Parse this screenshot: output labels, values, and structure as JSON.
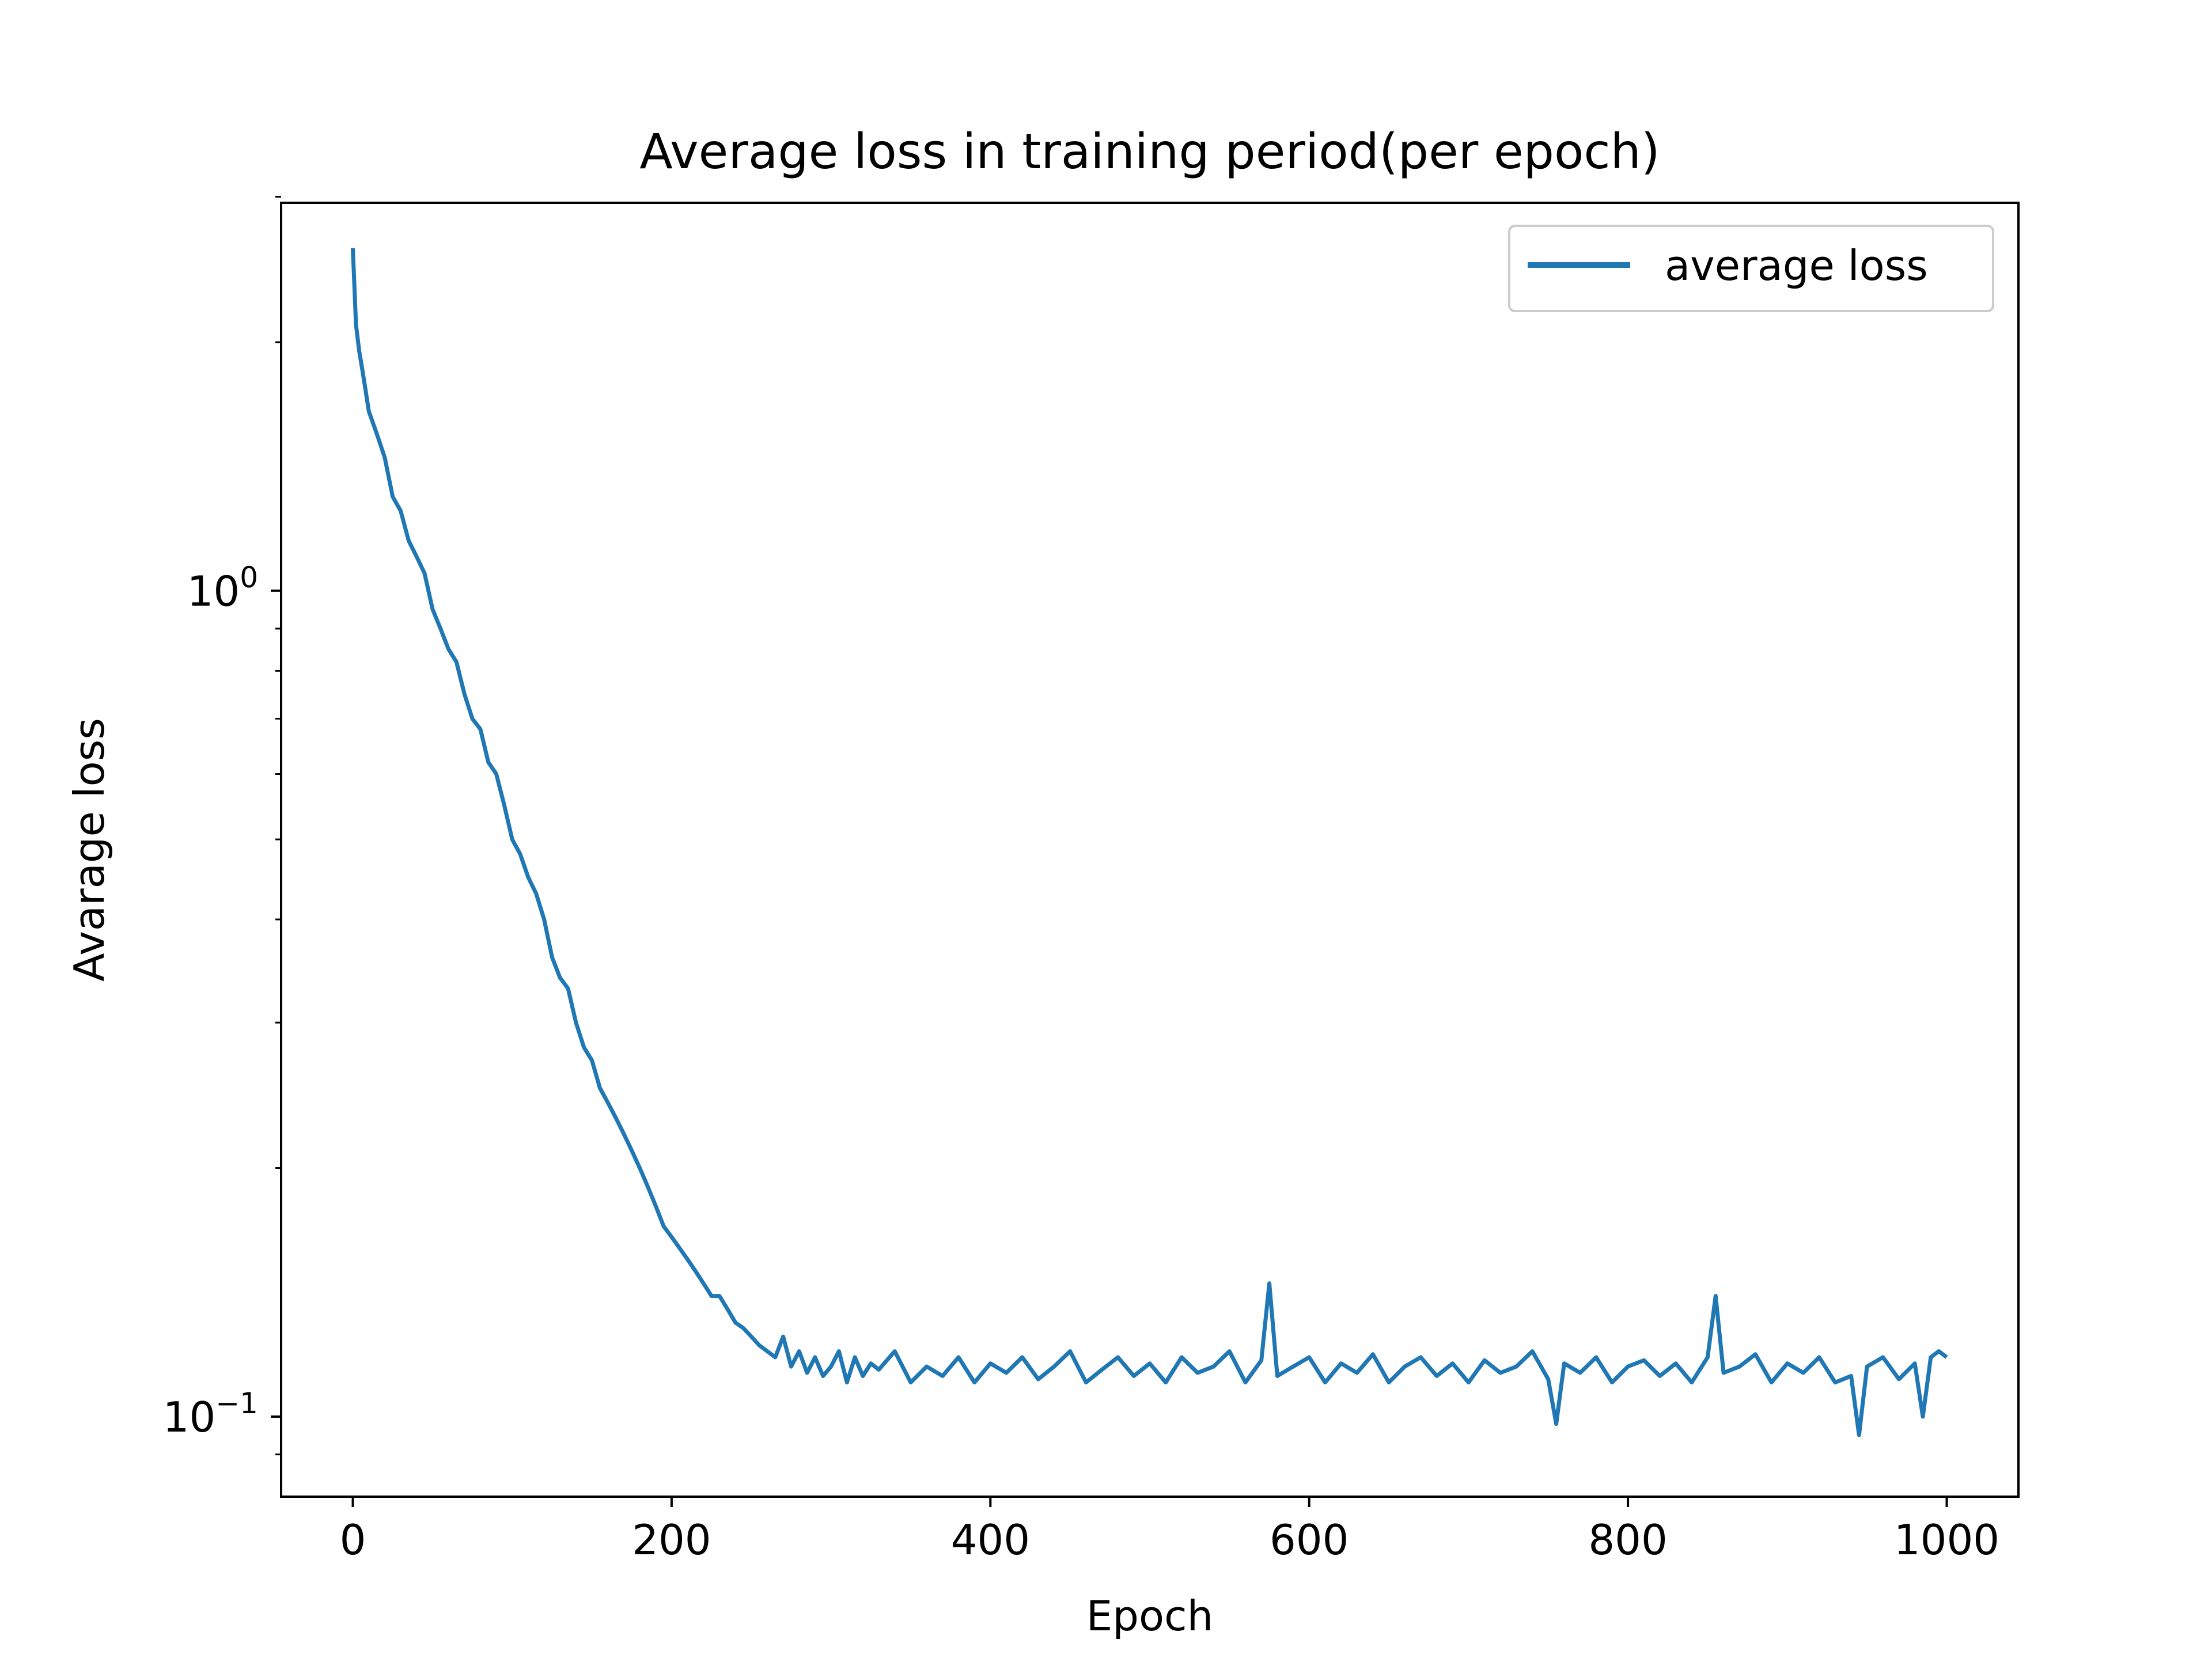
{
  "chart_data": {
    "type": "line",
    "title": "Average loss in training period(per epoch)",
    "xlabel": "Epoch",
    "ylabel": "Avarage loss",
    "xlim": [
      -45,
      1045
    ],
    "ylim": [
      0.08,
      2.95
    ],
    "yscale": "log",
    "grid": false,
    "legend": {
      "placement": "top-right",
      "entries": [
        "average loss"
      ]
    },
    "colors": {
      "series": "#1f77b4",
      "axes": "#000000",
      "legend_border": "#cccccc"
    },
    "x_ticks": [
      {
        "value": 0,
        "label": "0"
      },
      {
        "value": 200,
        "label": "200"
      },
      {
        "value": 400,
        "label": "400"
      },
      {
        "value": 600,
        "label": "600"
      },
      {
        "value": 800,
        "label": "800"
      },
      {
        "value": 1000,
        "label": "1000"
      }
    ],
    "y_ticks": [
      {
        "value": 1.0,
        "base": "10",
        "exponent": "0"
      },
      {
        "value": 0.1,
        "base": "10",
        "exponent": "−1"
      }
    ],
    "y_minor_ticks": [
      0.09,
      0.2,
      0.3,
      0.4,
      0.5,
      0.6,
      0.7,
      0.8,
      0.9,
      2.0,
      3.0
    ],
    "series": [
      {
        "name": "average loss",
        "x": [
          0,
          2,
          4,
          6,
          8,
          10,
          15,
          20,
          25,
          30,
          35,
          40,
          45,
          50,
          55,
          60,
          65,
          70,
          75,
          80,
          85,
          90,
          95,
          100,
          105,
          110,
          115,
          120,
          125,
          130,
          135,
          140,
          145,
          150,
          155,
          160,
          165,
          170,
          175,
          180,
          185,
          190,
          195,
          200,
          205,
          210,
          215,
          220,
          225,
          230,
          235,
          240,
          245,
          250,
          255,
          260,
          265,
          270,
          275,
          280,
          285,
          290,
          295,
          300,
          305,
          310,
          315,
          320,
          325,
          330,
          340,
          350,
          360,
          370,
          380,
          390,
          400,
          410,
          420,
          430,
          440,
          450,
          460,
          470,
          480,
          490,
          500,
          510,
          520,
          530,
          540,
          550,
          560,
          570,
          575,
          580,
          590,
          600,
          610,
          620,
          630,
          640,
          650,
          660,
          670,
          680,
          690,
          700,
          710,
          720,
          730,
          740,
          750,
          755,
          760,
          770,
          780,
          790,
          800,
          810,
          820,
          830,
          840,
          850,
          855,
          860,
          870,
          880,
          890,
          900,
          910,
          920,
          930,
          940,
          945,
          950,
          960,
          970,
          980,
          985,
          990,
          995,
          1000
        ],
        "values": [
          2.6,
          2.1,
          1.95,
          1.85,
          1.75,
          1.65,
          1.55,
          1.45,
          1.3,
          1.25,
          1.15,
          1.1,
          1.05,
          0.95,
          0.9,
          0.85,
          0.82,
          0.75,
          0.7,
          0.68,
          0.62,
          0.6,
          0.55,
          0.5,
          0.48,
          0.45,
          0.43,
          0.4,
          0.36,
          0.34,
          0.33,
          0.3,
          0.28,
          0.27,
          0.25,
          0.24,
          0.23,
          0.22,
          0.21,
          0.2,
          0.19,
          0.18,
          0.17,
          0.165,
          0.16,
          0.155,
          0.15,
          0.145,
          0.14,
          0.14,
          0.135,
          0.13,
          0.128,
          0.125,
          0.122,
          0.12,
          0.118,
          0.125,
          0.115,
          0.12,
          0.113,
          0.118,
          0.112,
          0.115,
          0.12,
          0.11,
          0.118,
          0.112,
          0.116,
          0.114,
          0.12,
          0.11,
          0.115,
          0.112,
          0.118,
          0.11,
          0.116,
          0.113,
          0.118,
          0.111,
          0.115,
          0.12,
          0.11,
          0.114,
          0.118,
          0.112,
          0.116,
          0.11,
          0.118,
          0.113,
          0.115,
          0.12,
          0.11,
          0.117,
          0.145,
          0.112,
          0.115,
          0.118,
          0.11,
          0.116,
          0.113,
          0.119,
          0.11,
          0.115,
          0.118,
          0.112,
          0.116,
          0.11,
          0.117,
          0.113,
          0.115,
          0.12,
          0.111,
          0.098,
          0.116,
          0.113,
          0.118,
          0.11,
          0.115,
          0.117,
          0.112,
          0.116,
          0.11,
          0.118,
          0.14,
          0.113,
          0.115,
          0.119,
          0.11,
          0.116,
          0.113,
          0.118,
          0.11,
          0.112,
          0.095,
          0.115,
          0.118,
          0.111,
          0.116,
          0.1,
          0.118,
          0.12,
          0.118
        ]
      }
    ]
  }
}
